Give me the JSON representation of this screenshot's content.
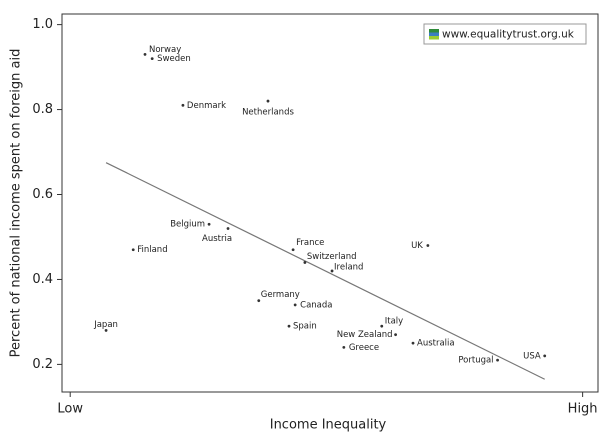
{
  "chart_data": {
    "type": "scatter",
    "watermark": "www.equalitytrust.org.uk",
    "x_label": "Income Inequality",
    "y_label": "Percent of national income spent on foreign aid",
    "xlim": [
      -0.016,
      1.03
    ],
    "ylim": [
      0.135,
      1.025
    ],
    "xticks": [
      {
        "value": 0,
        "label": "Low"
      },
      {
        "value": 1,
        "label": "High"
      }
    ],
    "yticks": [
      0.2,
      0.4,
      0.6,
      0.8,
      {
        "value": 1,
        "label": "1.0"
      }
    ],
    "color": "#333333",
    "points": [
      {
        "label": "Norway",
        "x": 0.146,
        "y": 0.93
      },
      {
        "label": "Sweden",
        "x": 0.16,
        "y": 0.92
      },
      {
        "label": "Denmark",
        "x": 0.22,
        "y": 0.81
      },
      {
        "label": "Netherlands",
        "x": 0.386,
        "y": 0.82
      },
      {
        "label": "Belgium",
        "x": 0.271,
        "y": 0.53
      },
      {
        "label": "Austria",
        "x": 0.308,
        "y": 0.52
      },
      {
        "label": "Finland",
        "x": 0.123,
        "y": 0.47
      },
      {
        "label": "France",
        "x": 0.435,
        "y": 0.47
      },
      {
        "label": "Switzerland",
        "x": 0.458,
        "y": 0.44
      },
      {
        "label": "Ireland",
        "x": 0.511,
        "y": 0.42
      },
      {
        "label": "UK",
        "x": 0.698,
        "y": 0.48
      },
      {
        "label": "Germany",
        "x": 0.368,
        "y": 0.35
      },
      {
        "label": "Canada",
        "x": 0.439,
        "y": 0.34
      },
      {
        "label": "Japan",
        "x": 0.07,
        "y": 0.28
      },
      {
        "label": "Spain",
        "x": 0.427,
        "y": 0.29
      },
      {
        "label": "Italy",
        "x": 0.608,
        "y": 0.29
      },
      {
        "label": "New Zealand",
        "x": 0.635,
        "y": 0.27
      },
      {
        "label": "Greece",
        "x": 0.534,
        "y": 0.24
      },
      {
        "label": "Australia",
        "x": 0.669,
        "y": 0.25
      },
      {
        "label": "Portugal",
        "x": 0.834,
        "y": 0.21
      },
      {
        "label": "USA",
        "x": 0.926,
        "y": 0.22
      }
    ],
    "trend": {
      "x": [
        0.07,
        0.926
      ],
      "y": [
        0.675,
        0.165
      ]
    }
  }
}
